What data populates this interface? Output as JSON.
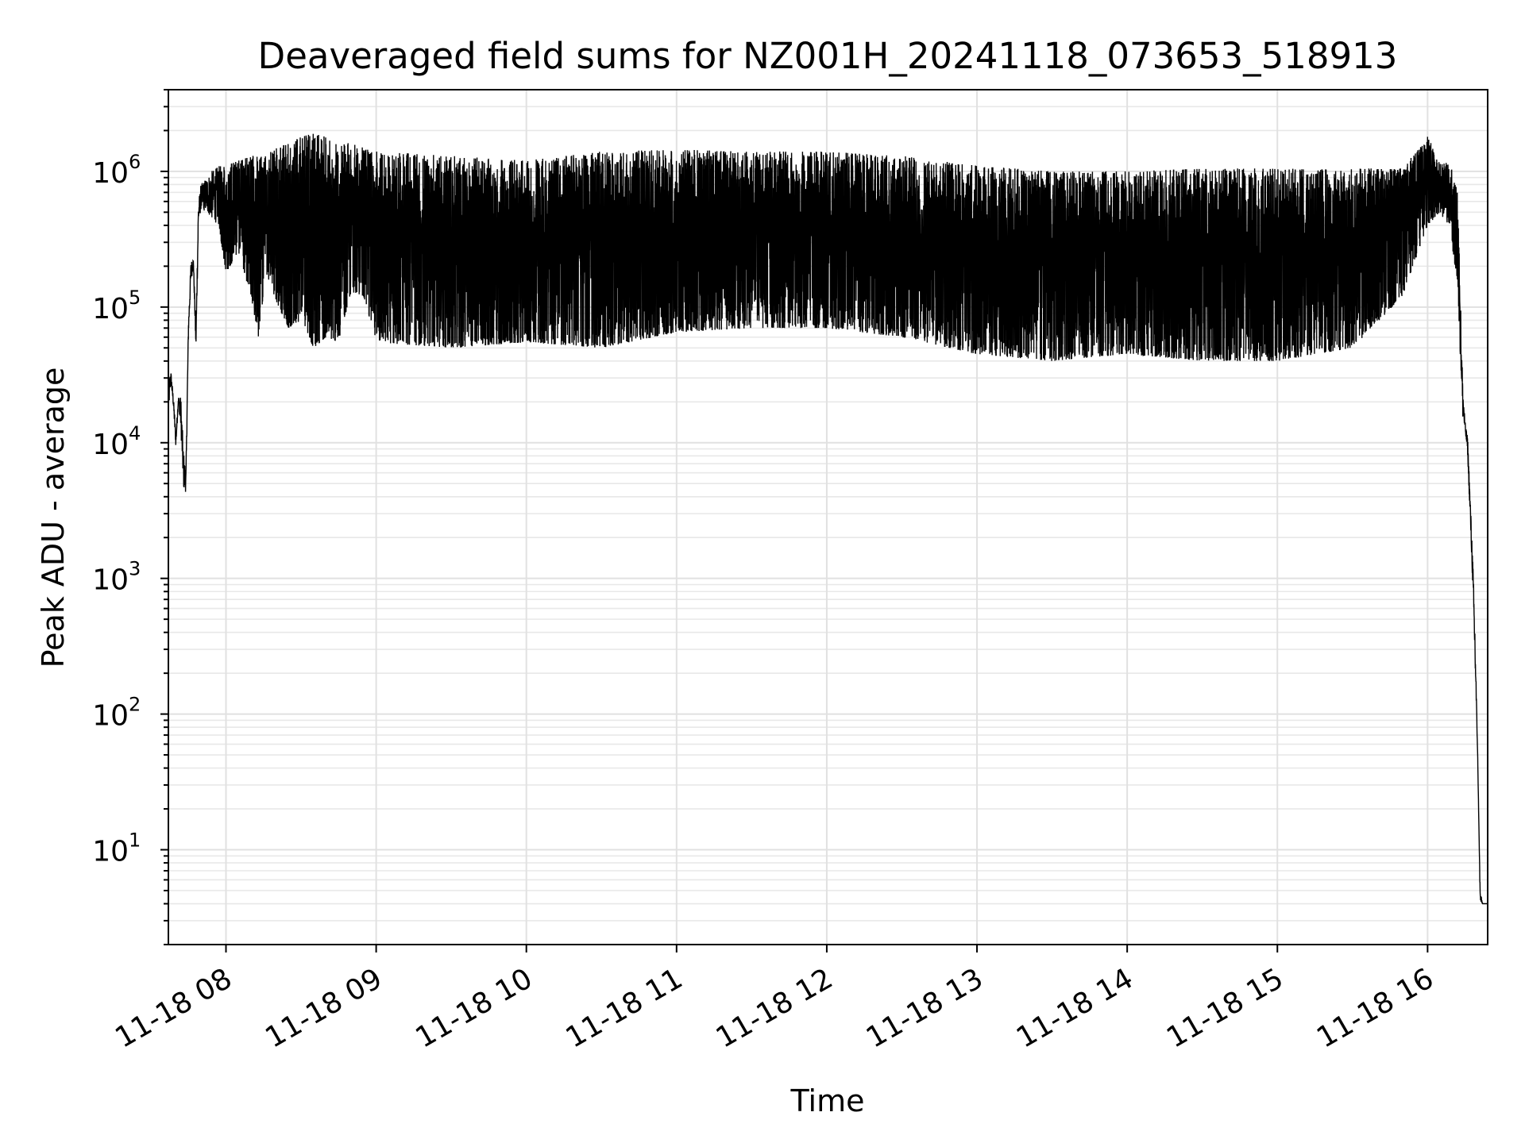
{
  "chart_data": {
    "type": "line",
    "title": "Deaveraged field sums for NZ001H_20241118_073653_518913",
    "xlabel": "Time",
    "ylabel": "Peak ADU - average",
    "xscale": "time",
    "yscale": "log",
    "xlim": [
      "2024-11-18 07:37",
      "2024-11-18 16:24"
    ],
    "ylim": [
      2,
      4000000
    ],
    "xticks": [
      "11-18 08",
      "11-18 09",
      "11-18 10",
      "11-18 11",
      "11-18 12",
      "11-18 13",
      "11-18 14",
      "11-18 15",
      "11-18 16"
    ],
    "yticks": [
      {
        "base": "10",
        "exp": "1"
      },
      {
        "base": "10",
        "exp": "2"
      },
      {
        "base": "10",
        "exp": "3"
      },
      {
        "base": "10",
        "exp": "4"
      },
      {
        "base": "10",
        "exp": "5"
      },
      {
        "base": "10",
        "exp": "6"
      }
    ],
    "grid": true,
    "series_color": "#000000",
    "series": [
      {
        "x": [
          "2024-11-18 07:37",
          "2024-11-18 07:38",
          "2024-11-18 07:39",
          "2024-11-18 07:40",
          "2024-11-18 07:41",
          "2024-11-18 07:42",
          "2024-11-18 07:43",
          "2024-11-18 07:44",
          "2024-11-18 07:45",
          "2024-11-18 07:46",
          "2024-11-18 07:47",
          "2024-11-18 07:48",
          "2024-11-18 07:49",
          "2024-11-18 07:50",
          "2024-11-18 07:52",
          "2024-11-18 07:54",
          "2024-11-18 07:57",
          "2024-11-18 08:00",
          "2024-11-18 08:05",
          "2024-11-18 08:10",
          "2024-11-18 08:13",
          "2024-11-18 08:16",
          "2024-11-18 08:20",
          "2024-11-18 08:25",
          "2024-11-18 08:30",
          "2024-11-18 08:35",
          "2024-11-18 08:40",
          "2024-11-18 08:45",
          "2024-11-18 08:50",
          "2024-11-18 08:55",
          "2024-11-18 09:00",
          "2024-11-18 09:30",
          "2024-11-18 10:00",
          "2024-11-18 10:30",
          "2024-11-18 11:00",
          "2024-11-18 11:30",
          "2024-11-18 12:00",
          "2024-11-18 12:30",
          "2024-11-18 13:00",
          "2024-11-18 13:30",
          "2024-11-18 14:00",
          "2024-11-18 14:30",
          "2024-11-18 15:00",
          "2024-11-18 15:30",
          "2024-11-18 15:50",
          "2024-11-18 16:00",
          "2024-11-18 16:05",
          "2024-11-18 16:09",
          "2024-11-18 16:12",
          "2024-11-18 16:14",
          "2024-11-18 16:15",
          "2024-11-18 16:16",
          "2024-11-18 16:18",
          "2024-11-18 16:19",
          "2024-11-18 16:20",
          "2024-11-18 16:21",
          "2024-11-18 16:22",
          "2024-11-18 16:23",
          "2024-11-18 16:24"
        ],
        "min": [
          15000,
          28000,
          18000,
          9000,
          20000,
          12000,
          4500,
          4300,
          60000,
          150000,
          200000,
          45000,
          400000,
          520000,
          500000,
          450000,
          400000,
          180000,
          250000,
          120000,
          60000,
          180000,
          110000,
          70000,
          80000,
          50000,
          60000,
          55000,
          130000,
          120000,
          55000,
          50000,
          55000,
          50000,
          65000,
          70000,
          70000,
          60000,
          45000,
          40000,
          45000,
          40000,
          40000,
          50000,
          120000,
          400000,
          500000,
          350000,
          150000,
          15000,
          12000,
          8000,
          900,
          200,
          50,
          4,
          4,
          4,
          4
        ],
        "max": [
          30000,
          34000,
          22000,
          12000,
          22000,
          22000,
          9000,
          6000,
          80000,
          220000,
          230000,
          70000,
          600000,
          800000,
          900000,
          1000000,
          1100000,
          1100000,
          1200000,
          1300000,
          1300000,
          1300000,
          1500000,
          1600000,
          1800000,
          1900000,
          1800000,
          1700000,
          1600000,
          1500000,
          1400000,
          1300000,
          1200000,
          1400000,
          1450000,
          1400000,
          1400000,
          1300000,
          1100000,
          1000000,
          1000000,
          1050000,
          1050000,
          1050000,
          1050000,
          1800000,
          1200000,
          1150000,
          700000,
          30000,
          14000,
          11000,
          1500,
          400,
          50,
          5,
          4,
          4,
          4
        ]
      }
    ]
  }
}
